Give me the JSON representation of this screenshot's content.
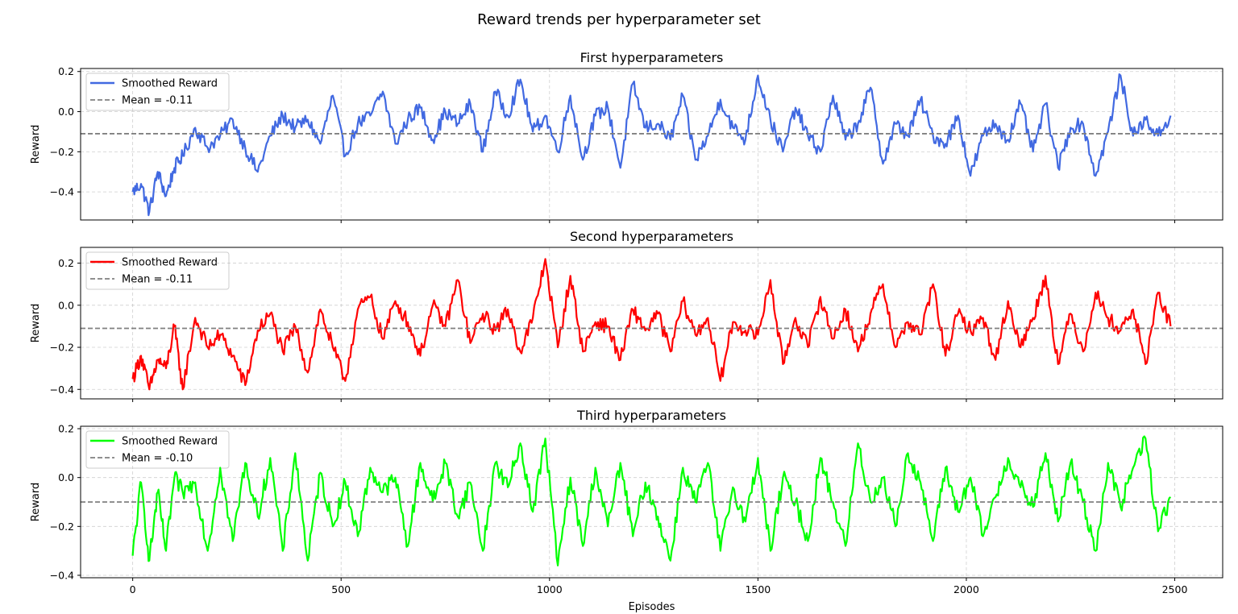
{
  "figure_title": "Reward trends per hyperparameter set",
  "xlabel": "Episodes",
  "chart_data": [
    {
      "type": "line",
      "title": "First hyperparameters",
      "xlabel": "",
      "ylabel": "Reward",
      "xlim": [
        -125,
        2615
      ],
      "ylim": [
        -0.54,
        0.215
      ],
      "xticks": [
        0,
        500,
        1000,
        1500,
        2000,
        2500
      ],
      "xtick_labels": [
        "",
        "",
        "",
        "",
        "",
        ""
      ],
      "yticks": [
        -0.4,
        -0.2,
        0.0,
        0.2
      ],
      "ytick_labels": [
        "−0.4",
        "−0.2",
        "0.0",
        "0.2"
      ],
      "grid": true,
      "legend_position": "upper-left",
      "mean": -0.11,
      "series": [
        {
          "name": "Smoothed Reward",
          "color": "#4169e1",
          "style": "solid",
          "x": [
            0,
            20,
            40,
            60,
            80,
            100,
            120,
            150,
            180,
            210,
            240,
            270,
            300,
            330,
            360,
            390,
            420,
            450,
            480,
            510,
            540,
            570,
            600,
            630,
            660,
            690,
            720,
            750,
            780,
            810,
            840,
            870,
            900,
            930,
            960,
            990,
            1020,
            1050,
            1080,
            1110,
            1140,
            1170,
            1200,
            1230,
            1260,
            1290,
            1320,
            1350,
            1380,
            1410,
            1440,
            1470,
            1500,
            1530,
            1560,
            1590,
            1620,
            1650,
            1680,
            1710,
            1740,
            1770,
            1800,
            1830,
            1860,
            1890,
            1920,
            1950,
            1980,
            2010,
            2040,
            2070,
            2100,
            2130,
            2160,
            2190,
            2220,
            2250,
            2280,
            2310,
            2340,
            2370,
            2400,
            2430,
            2460,
            2490
          ],
          "values": [
            -0.4,
            -0.36,
            -0.5,
            -0.3,
            -0.42,
            -0.28,
            -0.22,
            -0.08,
            -0.18,
            -0.12,
            -0.04,
            -0.18,
            -0.3,
            -0.12,
            -0.02,
            -0.08,
            -0.04,
            -0.16,
            0.08,
            -0.22,
            -0.06,
            -0.02,
            0.1,
            -0.16,
            -0.04,
            0.02,
            -0.14,
            0.0,
            -0.06,
            0.04,
            -0.2,
            0.1,
            -0.02,
            0.16,
            -0.1,
            -0.02,
            -0.2,
            0.08,
            -0.24,
            -0.02,
            0.02,
            -0.28,
            0.14,
            -0.08,
            -0.06,
            -0.14,
            0.08,
            -0.24,
            -0.12,
            0.06,
            -0.08,
            -0.14,
            0.18,
            -0.04,
            -0.2,
            0.02,
            -0.12,
            -0.2,
            0.08,
            -0.14,
            -0.06,
            0.12,
            -0.26,
            -0.06,
            -0.12,
            0.06,
            -0.12,
            -0.16,
            -0.02,
            -0.32,
            -0.12,
            -0.06,
            -0.14,
            0.04,
            -0.2,
            0.04,
            -0.28,
            -0.08,
            -0.06,
            -0.32,
            -0.1,
            0.18,
            -0.12,
            -0.04,
            -0.12,
            -0.02
          ]
        },
        {
          "name": "Mean = -0.11",
          "color": "#808080",
          "style": "dashed",
          "x": [
            -125,
            2615
          ],
          "values": [
            -0.11,
            -0.11
          ]
        }
      ]
    },
    {
      "type": "line",
      "title": "Second hyperparameters",
      "xlabel": "",
      "ylabel": "Reward",
      "xlim": [
        -125,
        2615
      ],
      "ylim": [
        -0.445,
        0.275
      ],
      "xticks": [
        0,
        500,
        1000,
        1500,
        2000,
        2500
      ],
      "xtick_labels": [
        "",
        "",
        "",
        "",
        "",
        ""
      ],
      "yticks": [
        -0.4,
        -0.2,
        0.0,
        0.2
      ],
      "ytick_labels": [
        "−0.4",
        "−0.2",
        "0.0",
        "0.2"
      ],
      "grid": true,
      "legend_position": "upper-left",
      "mean": -0.11,
      "series": [
        {
          "name": "Smoothed Reward",
          "color": "#ff0000",
          "style": "solid",
          "x": [
            0,
            20,
            40,
            60,
            80,
            100,
            120,
            150,
            180,
            210,
            240,
            270,
            300,
            330,
            360,
            390,
            420,
            450,
            480,
            510,
            540,
            570,
            600,
            630,
            660,
            690,
            720,
            750,
            780,
            810,
            840,
            870,
            900,
            930,
            960,
            990,
            1020,
            1050,
            1080,
            1110,
            1140,
            1170,
            1200,
            1230,
            1260,
            1290,
            1320,
            1350,
            1380,
            1410,
            1440,
            1470,
            1500,
            1530,
            1560,
            1590,
            1620,
            1650,
            1680,
            1710,
            1740,
            1770,
            1800,
            1830,
            1860,
            1890,
            1920,
            1950,
            1980,
            2010,
            2040,
            2070,
            2100,
            2130,
            2160,
            2190,
            2220,
            2250,
            2280,
            2310,
            2340,
            2370,
            2400,
            2430,
            2460,
            2490
          ],
          "values": [
            -0.35,
            -0.24,
            -0.4,
            -0.26,
            -0.3,
            -0.1,
            -0.4,
            -0.06,
            -0.2,
            -0.14,
            -0.24,
            -0.38,
            -0.12,
            -0.04,
            -0.22,
            -0.1,
            -0.32,
            -0.02,
            -0.2,
            -0.36,
            -0.02,
            0.04,
            -0.16,
            0.02,
            -0.08,
            -0.24,
            0.0,
            -0.1,
            0.12,
            -0.18,
            -0.04,
            -0.12,
            -0.02,
            -0.22,
            -0.06,
            0.22,
            -0.2,
            0.14,
            -0.22,
            -0.08,
            -0.1,
            -0.26,
            -0.02,
            -0.12,
            -0.04,
            -0.22,
            0.02,
            -0.14,
            -0.06,
            -0.36,
            -0.08,
            -0.12,
            -0.14,
            0.12,
            -0.28,
            -0.06,
            -0.2,
            0.04,
            -0.16,
            -0.02,
            -0.22,
            -0.04,
            0.1,
            -0.2,
            -0.08,
            -0.14,
            0.1,
            -0.24,
            -0.04,
            -0.12,
            -0.06,
            -0.26,
            0.02,
            -0.2,
            -0.06,
            0.14,
            -0.28,
            -0.04,
            -0.22,
            0.06,
            -0.06,
            -0.12,
            -0.02,
            -0.28,
            0.06,
            -0.1
          ]
        },
        {
          "name": "Mean = -0.11",
          "color": "#808080",
          "style": "dashed",
          "x": [
            -125,
            2615
          ],
          "values": [
            -0.11,
            -0.11
          ]
        }
      ]
    },
    {
      "type": "line",
      "title": "Third hyperparameters",
      "xlabel": "Episodes",
      "ylabel": "Reward",
      "xlim": [
        -125,
        2615
      ],
      "ylim": [
        -0.41,
        0.21
      ],
      "xticks": [
        0,
        500,
        1000,
        1500,
        2000,
        2500
      ],
      "xtick_labels": [
        "0",
        "500",
        "1000",
        "1500",
        "2000",
        "2500"
      ],
      "yticks": [
        -0.4,
        -0.2,
        0.0,
        0.2
      ],
      "ytick_labels": [
        "−0.4",
        "−0.2",
        "0.0",
        "0.2"
      ],
      "grid": true,
      "legend_position": "upper-left",
      "mean": -0.1,
      "series": [
        {
          "name": "Smoothed Reward",
          "color": "#00ff00",
          "style": "solid",
          "x": [
            0,
            20,
            40,
            60,
            80,
            100,
            120,
            150,
            180,
            210,
            240,
            270,
            300,
            330,
            360,
            390,
            420,
            450,
            480,
            510,
            540,
            570,
            600,
            630,
            660,
            690,
            720,
            750,
            780,
            810,
            840,
            870,
            900,
            930,
            960,
            990,
            1020,
            1050,
            1080,
            1110,
            1140,
            1170,
            1200,
            1230,
            1260,
            1290,
            1320,
            1350,
            1380,
            1410,
            1440,
            1470,
            1500,
            1530,
            1560,
            1590,
            1620,
            1650,
            1680,
            1710,
            1740,
            1770,
            1800,
            1830,
            1860,
            1890,
            1920,
            1950,
            1980,
            2010,
            2040,
            2070,
            2100,
            2130,
            2160,
            2190,
            2220,
            2250,
            2280,
            2310,
            2340,
            2370,
            2400,
            2430,
            2460,
            2490
          ],
          "values": [
            -0.32,
            -0.02,
            -0.34,
            -0.06,
            -0.3,
            0.0,
            -0.06,
            -0.02,
            -0.3,
            0.04,
            -0.26,
            0.06,
            -0.16,
            0.08,
            -0.3,
            0.1,
            -0.34,
            0.02,
            -0.2,
            -0.02,
            -0.24,
            0.04,
            -0.06,
            0.0,
            -0.28,
            0.06,
            -0.1,
            0.06,
            -0.16,
            -0.02,
            -0.3,
            0.06,
            -0.04,
            0.14,
            -0.14,
            0.16,
            -0.36,
            0.0,
            -0.28,
            0.04,
            -0.2,
            0.06,
            -0.24,
            -0.02,
            -0.16,
            -0.34,
            0.04,
            -0.1,
            0.06,
            -0.3,
            -0.04,
            -0.18,
            0.08,
            -0.3,
            0.0,
            -0.1,
            -0.26,
            0.08,
            -0.1,
            -0.28,
            0.14,
            -0.1,
            0.0,
            -0.2,
            0.1,
            -0.02,
            -0.26,
            0.04,
            -0.14,
            0.0,
            -0.24,
            -0.08,
            0.08,
            -0.04,
            -0.12,
            0.1,
            -0.18,
            0.06,
            -0.1,
            -0.3,
            0.06,
            -0.12,
            0.04,
            0.16,
            -0.22,
            -0.08
          ]
        },
        {
          "name": "Mean = -0.10",
          "color": "#808080",
          "style": "dashed",
          "x": [
            -125,
            2615
          ],
          "values": [
            -0.1,
            -0.1
          ]
        }
      ]
    }
  ]
}
